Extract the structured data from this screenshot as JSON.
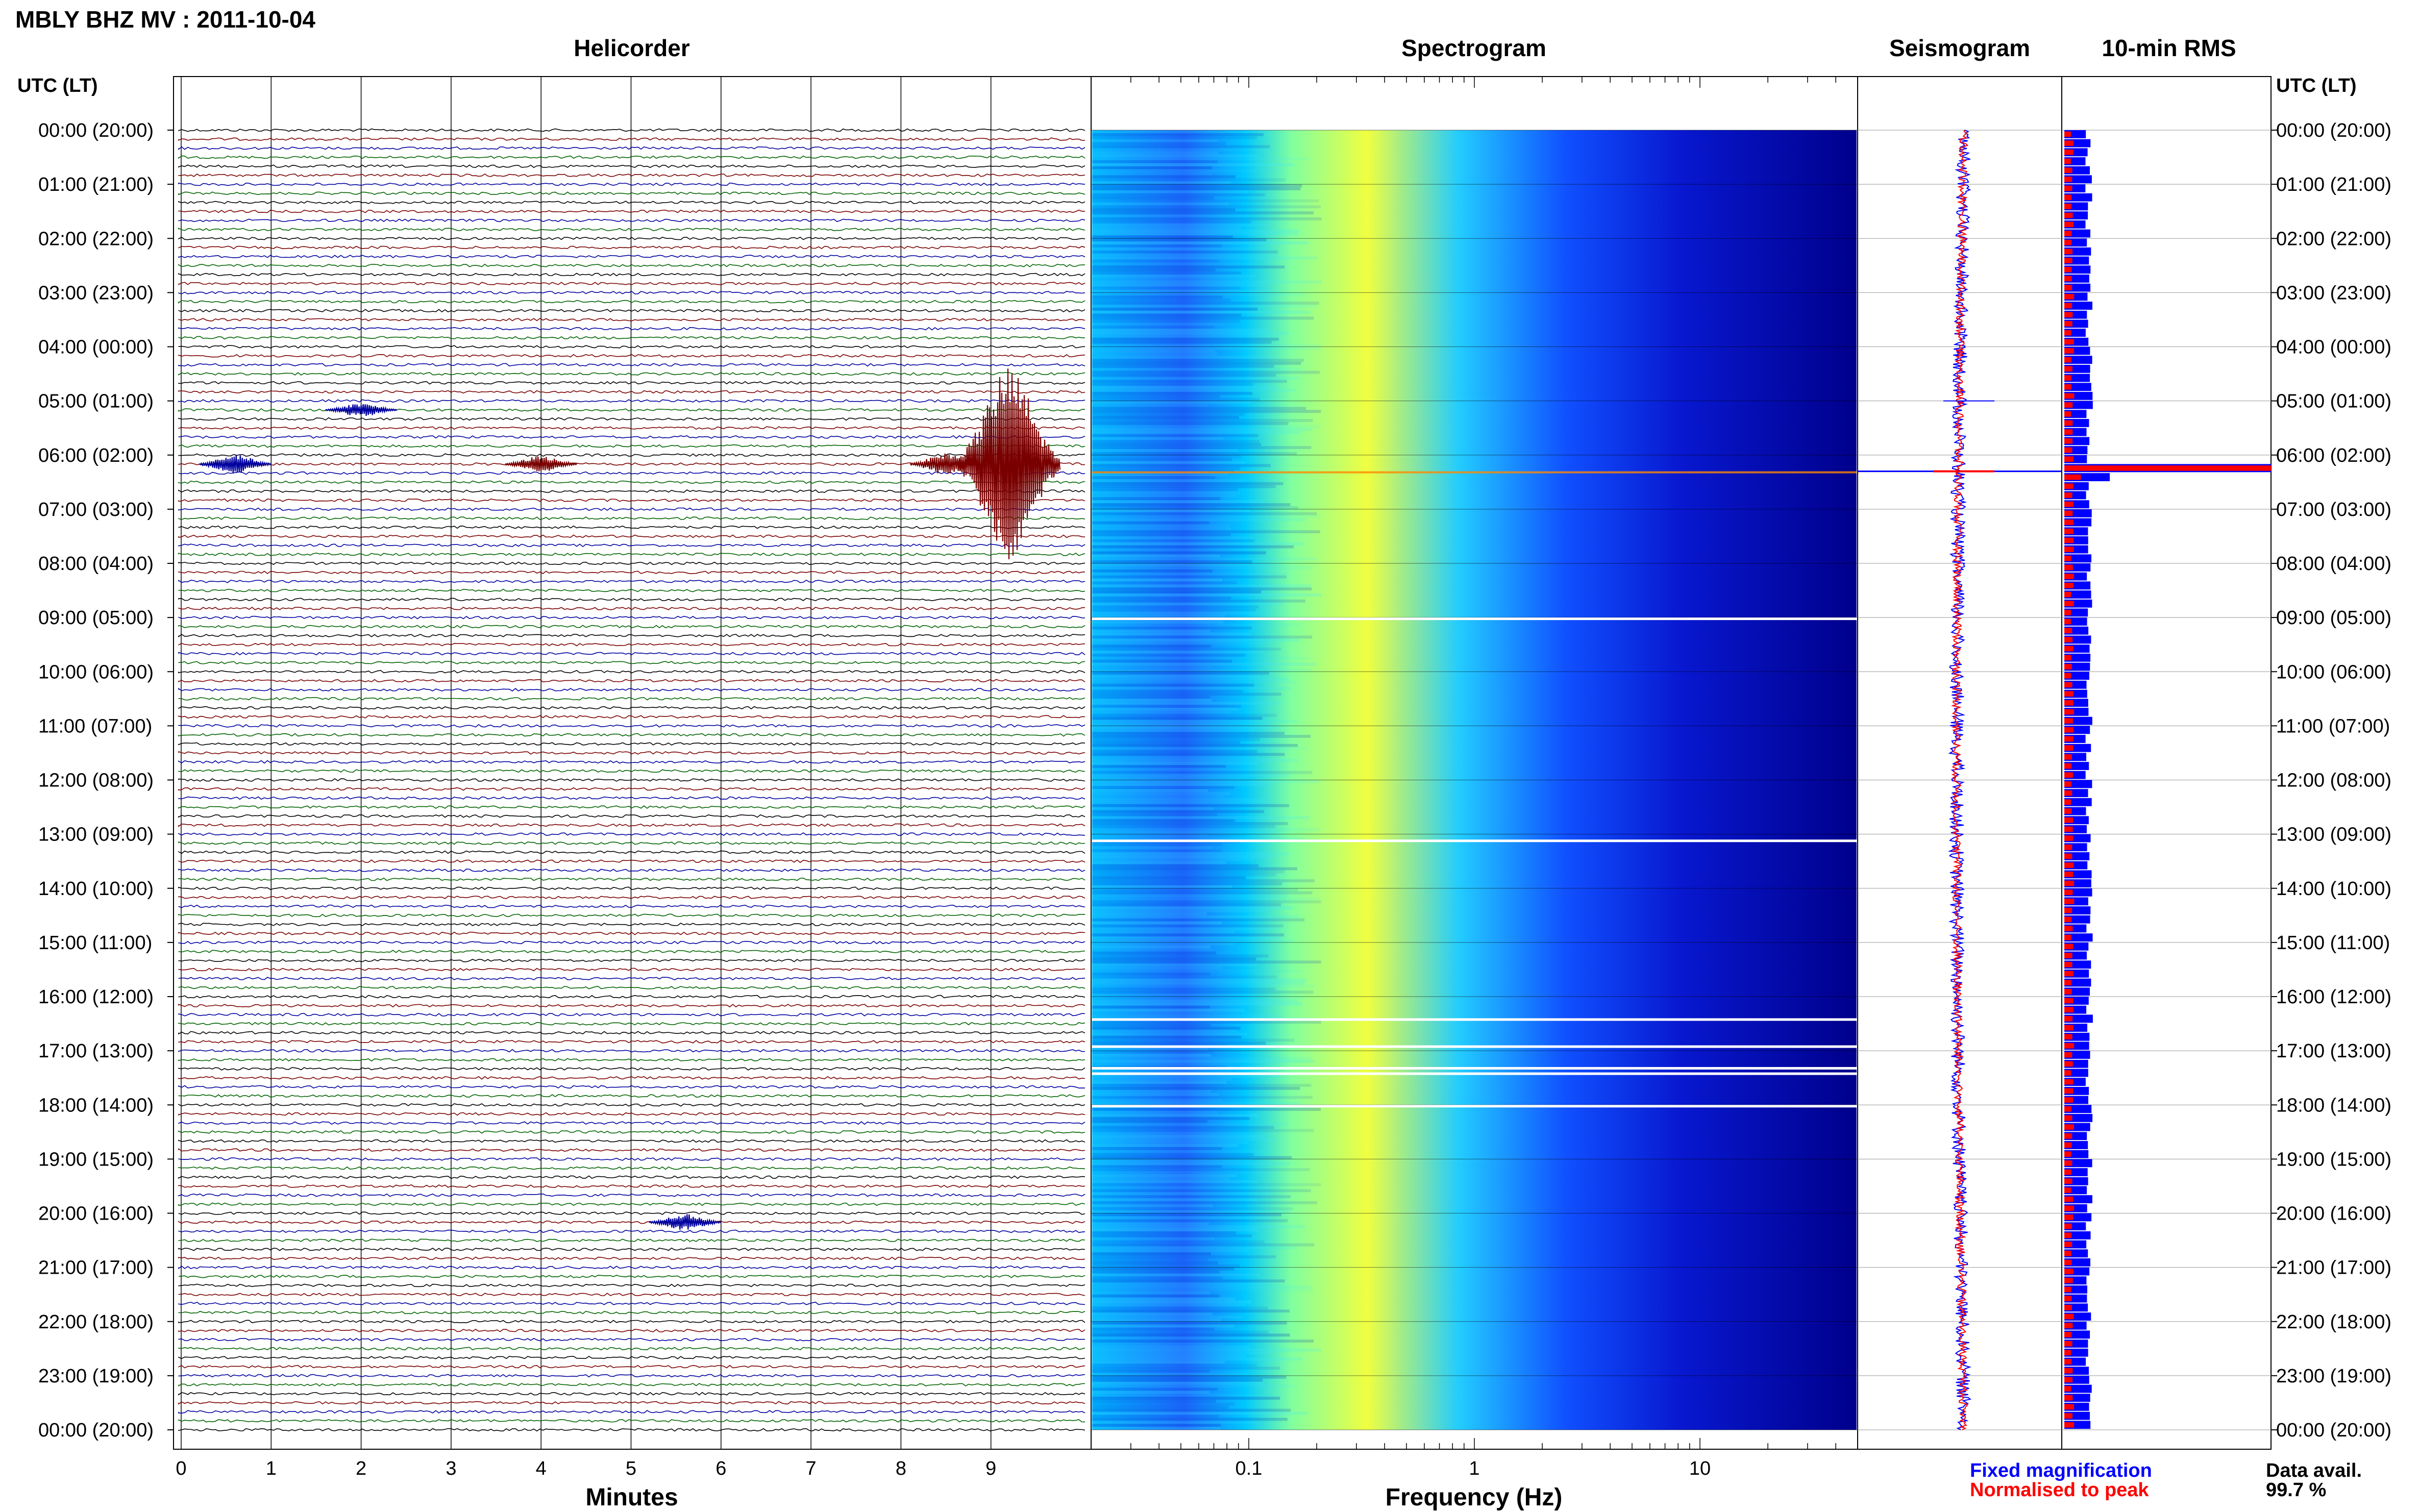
{
  "window_title": "MBLY BHZ MV : 2011-10-04",
  "panels": {
    "helicorder": "Helicorder",
    "spectrogram": "Spectrogram",
    "seismogram": "Seismogram",
    "rms": "10-min RMS"
  },
  "left_axis_header": "UTC (LT)",
  "right_axis_header": "UTC (LT)",
  "hour_labels": [
    "00:00 (20:00)",
    "01:00 (21:00)",
    "02:00 (22:00)",
    "03:00 (23:00)",
    "04:00 (00:00)",
    "05:00 (01:00)",
    "06:00 (02:00)",
    "07:00 (03:00)",
    "08:00 (04:00)",
    "09:00 (05:00)",
    "10:00 (06:00)",
    "11:00 (07:00)",
    "12:00 (08:00)",
    "13:00 (09:00)",
    "14:00 (10:00)",
    "15:00 (11:00)",
    "16:00 (12:00)",
    "17:00 (13:00)",
    "18:00 (14:00)",
    "19:00 (15:00)",
    "20:00 (16:00)",
    "21:00 (17:00)",
    "22:00 (18:00)",
    "23:00 (19:00)",
    "00:00 (20:00)"
  ],
  "legend": {
    "fixed": "Fixed magnification",
    "normalised": "Normalised to peak",
    "fixed_color": "#0000ff",
    "normalised_color": "#ff0000"
  },
  "data_availability": {
    "label": "Data avail.",
    "value": "99.7 %"
  },
  "chart_data": [
    {
      "type": "line",
      "name": "helicorder",
      "title": "Helicorder",
      "xlabel": "Minutes",
      "xlim": [
        0,
        10
      ],
      "x_ticks": [
        "0",
        "1",
        "2",
        "3",
        "4",
        "5",
        "6",
        "7",
        "8",
        "9"
      ],
      "rows_per_hour": 6,
      "trace_colors": [
        "#000000",
        "#7a0000",
        "#0000a0",
        "#006400"
      ],
      "events": [
        {
          "hour": 5,
          "minute": 2.0,
          "amplitude": 0.25,
          "color": "#0000a0"
        },
        {
          "hour": 6,
          "minute": 0.6,
          "amplitude": 0.35,
          "color": "#0000a0"
        },
        {
          "hour": 6,
          "minute": 4.0,
          "amplitude": 0.3,
          "color": "#7a0000"
        },
        {
          "hour": 6,
          "minute": 8.5,
          "amplitude": 0.4,
          "color": "#7a0000"
        },
        {
          "hour": 6,
          "minute": 9.2,
          "amplitude": 3.6,
          "color": "#7a0000"
        },
        {
          "hour": 20,
          "minute": 5.6,
          "amplitude": 0.3,
          "color": "#0000a0"
        }
      ]
    },
    {
      "type": "heatmap",
      "name": "spectrogram",
      "title": "Spectrogram",
      "xlabel": "Frequency (Hz)",
      "x_scale": "log",
      "xlim": [
        0.02,
        50
      ],
      "x_ticks": [
        "0.1",
        "1",
        "10"
      ],
      "colormap": [
        "#00008b",
        "#0000ff",
        "#0080ff",
        "#00ffff",
        "#80ff80",
        "#ffff00"
      ],
      "gaps_hours": [
        9.0,
        13.1,
        16.4,
        16.9,
        17.3,
        17.4,
        18.0
      ]
    },
    {
      "type": "line",
      "name": "seismogram",
      "title": "Seismogram",
      "event_hour": 6.3
    },
    {
      "type": "bar",
      "name": "rms",
      "title": "10-min RMS",
      "series": [
        {
          "name": "Fixed magnification",
          "color": "#0000ff"
        },
        {
          "name": "Normalised to peak",
          "color": "#ff0000"
        }
      ],
      "peak_hour": 6.2,
      "fixed_typical": 0.12,
      "normalised_typical": 0.04
    }
  ]
}
